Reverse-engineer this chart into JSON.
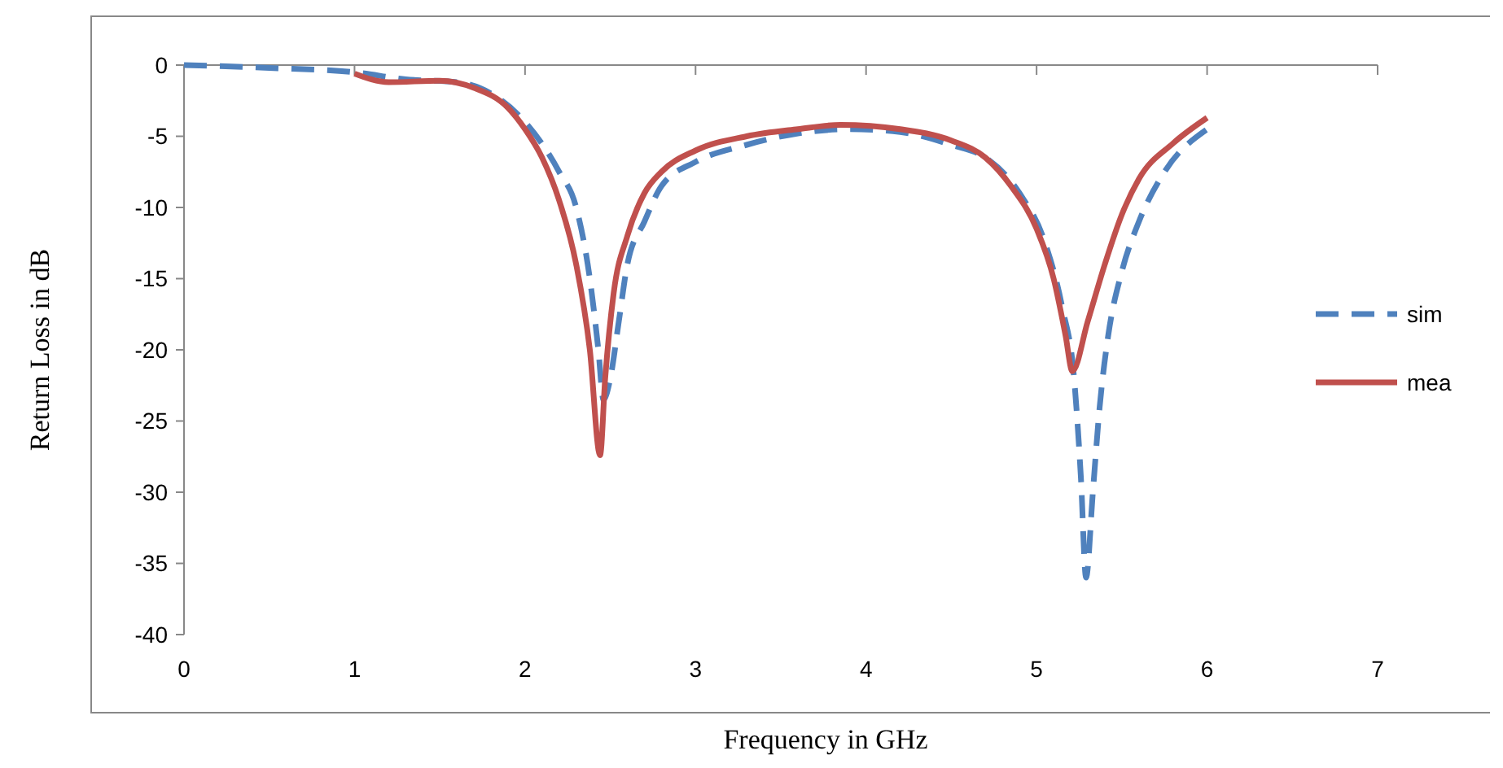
{
  "chart_data": {
    "type": "line",
    "xlabel": "Frequency in GHz",
    "ylabel": "Return Loss in dB",
    "xlim": [
      0,
      7
    ],
    "xticks": [
      0,
      1,
      2,
      3,
      4,
      5,
      6,
      7
    ],
    "ylim": [
      -40,
      0
    ],
    "yticks": [
      -40,
      -35,
      -30,
      -25,
      -20,
      -15,
      -10,
      -5,
      0
    ],
    "grid": false,
    "legend": "right",
    "marker": "none",
    "series": [
      {
        "name": "sim",
        "color": "#4f81bd",
        "line_style": "dashed",
        "x": [
          0,
          0.5,
          1,
          1.3,
          1.6,
          1.8,
          2.0,
          2.2,
          2.3,
          2.38,
          2.43,
          2.46,
          2.5,
          2.55,
          2.6,
          2.7,
          2.8,
          3,
          3.3,
          3.6,
          3.9,
          4.2,
          4.5,
          4.7,
          4.9,
          5.05,
          5.15,
          5.22,
          5.26,
          5.29,
          5.33,
          5.37,
          5.42,
          5.5,
          5.6,
          5.75,
          6
        ],
        "values": [
          0,
          -0.2,
          -0.5,
          -1,
          -1.2,
          -2,
          -4,
          -7.5,
          -10,
          -15,
          -20,
          -23.5,
          -22,
          -18,
          -14,
          -11,
          -8.5,
          -6.8,
          -5.6,
          -4.8,
          -4.5,
          -4.7,
          -5.6,
          -6.5,
          -9,
          -12.5,
          -17,
          -22,
          -29,
          -36,
          -30,
          -24,
          -19,
          -14.5,
          -11,
          -7.5,
          -4.5
        ]
      },
      {
        "name": "mea",
        "color": "#c0504d",
        "line_style": "solid",
        "x": [
          1,
          1.2,
          1.5,
          1.7,
          1.9,
          2.0,
          2.1,
          2.2,
          2.3,
          2.38,
          2.44,
          2.47,
          2.52,
          2.6,
          2.7,
          2.8,
          3,
          3.3,
          3.6,
          3.85,
          4.2,
          4.5,
          4.7,
          4.85,
          5.0,
          5.1,
          5.17,
          5.21,
          5.3,
          5.4,
          5.5,
          5.6,
          5.8,
          6
        ],
        "values": [
          -0.6,
          -1.2,
          -1.1,
          -1.6,
          -3,
          -4.5,
          -6.5,
          -9.5,
          -14,
          -20,
          -27.4,
          -22,
          -16,
          -12,
          -9,
          -7.5,
          -6,
          -5,
          -4.5,
          -4.2,
          -4.5,
          -5.3,
          -6.5,
          -8.5,
          -11.5,
          -15,
          -19,
          -21.5,
          -18,
          -14,
          -10.5,
          -8,
          -5.5,
          -3.7
        ]
      }
    ]
  }
}
